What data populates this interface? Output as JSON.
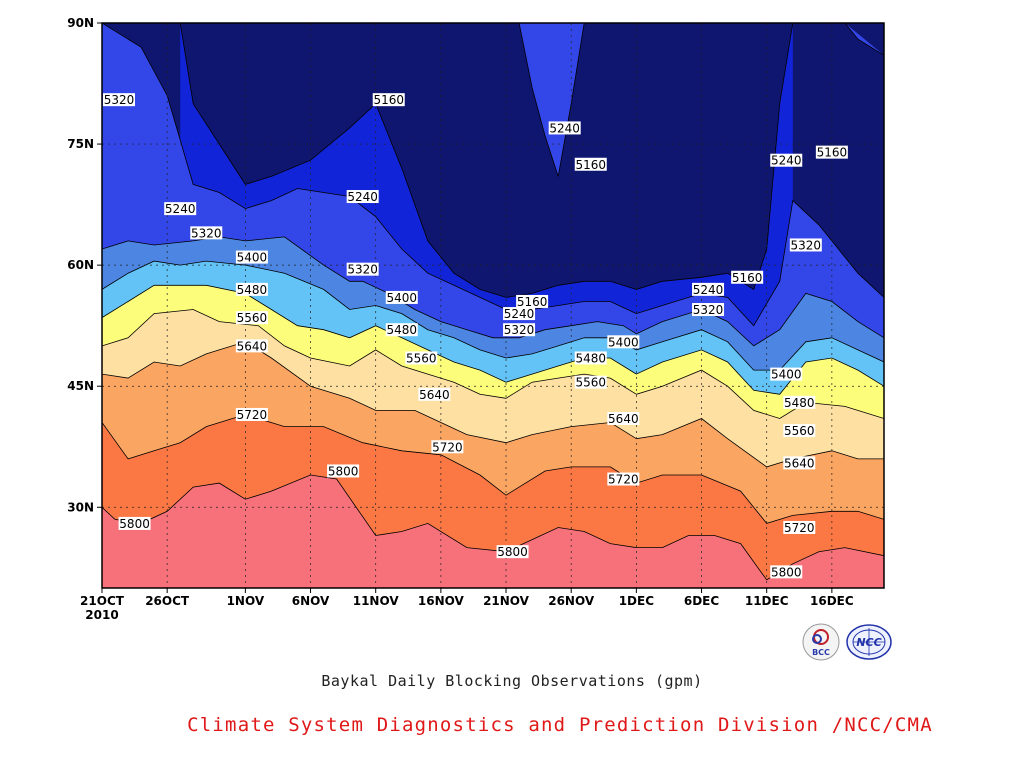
{
  "chart_data": {
    "type": "contour",
    "title": "Baykal Daily Blocking Observations (gpm)",
    "credit": "Climate System Diagnostics and Prediction Division /NCC/CMA",
    "logos": [
      "BCC",
      "NCC"
    ],
    "x_ticks": [
      "21OCT",
      "26OCT",
      "1NOV",
      "6NOV",
      "11NOV",
      "16NOV",
      "21NOV",
      "26NOV",
      "1DEC",
      "6DEC",
      "11DEC",
      "16DEC"
    ],
    "x_tick_days": [
      0,
      5,
      11,
      16,
      21,
      26,
      31,
      36,
      41,
      46,
      51,
      56
    ],
    "x_year_label": "2010",
    "x_range_days": [
      0,
      60
    ],
    "y_ticks": [
      "30N",
      "45N",
      "60N",
      "75N",
      "90N"
    ],
    "y_tick_values": [
      30,
      45,
      60,
      75,
      90
    ],
    "y_range": [
      20,
      90
    ],
    "grid": true,
    "levels": [
      5160,
      5240,
      5320,
      5400,
      5480,
      5560,
      5640,
      5720,
      5800
    ],
    "band_colors": [
      "#0f1670",
      "#1224d8",
      "#3346e8",
      "#4d86e2",
      "#63c3f7",
      "#fdfd7c",
      "#fde0a2",
      "#fba563",
      "#fb7845",
      "#f7717b"
    ],
    "contour_lines": [
      {
        "level": 5800,
        "points": [
          [
            0,
            30
          ],
          [
            1,
            28.5
          ],
          [
            3,
            28
          ],
          [
            5,
            29.5
          ],
          [
            7,
            32.5
          ],
          [
            9,
            33
          ],
          [
            11,
            31
          ],
          [
            13,
            32
          ],
          [
            16,
            34
          ],
          [
            18,
            33.5
          ],
          [
            21,
            26.5
          ],
          [
            23,
            27
          ],
          [
            25,
            28
          ],
          [
            28,
            25
          ],
          [
            31,
            24.5
          ],
          [
            33,
            26
          ],
          [
            35,
            27.5
          ],
          [
            37,
            27
          ],
          [
            39,
            25.5
          ],
          [
            41,
            25
          ],
          [
            43,
            25
          ],
          [
            45,
            26.5
          ],
          [
            47,
            26.5
          ],
          [
            49,
            25.5
          ],
          [
            51,
            21
          ],
          [
            53,
            23
          ],
          [
            55,
            24.5
          ],
          [
            57,
            25
          ],
          [
            60,
            24
          ]
        ]
      },
      {
        "level": 5720,
        "points": [
          [
            0,
            40.5
          ],
          [
            2,
            36
          ],
          [
            4,
            37
          ],
          [
            6,
            38
          ],
          [
            8,
            40
          ],
          [
            11,
            41.5
          ],
          [
            14,
            40
          ],
          [
            17,
            40
          ],
          [
            20,
            38
          ],
          [
            23,
            37
          ],
          [
            26,
            36.5
          ],
          [
            29,
            34
          ],
          [
            31,
            31.5
          ],
          [
            34,
            34.5
          ],
          [
            36,
            35
          ],
          [
            39,
            35
          ],
          [
            41,
            33
          ],
          [
            43,
            34
          ],
          [
            46,
            34
          ],
          [
            49,
            32
          ],
          [
            51,
            28
          ],
          [
            53,
            29
          ],
          [
            56,
            29.5
          ],
          [
            58,
            29.5
          ],
          [
            60,
            28.5
          ]
        ]
      },
      {
        "level": 5640,
        "points": [
          [
            0,
            46.5
          ],
          [
            2,
            46
          ],
          [
            4,
            48
          ],
          [
            6,
            47.5
          ],
          [
            8,
            49
          ],
          [
            11,
            50.5
          ],
          [
            13,
            48.5
          ],
          [
            16,
            45
          ],
          [
            19,
            43.5
          ],
          [
            21,
            42
          ],
          [
            24,
            42
          ],
          [
            26,
            40.5
          ],
          [
            28,
            39
          ],
          [
            31,
            38
          ],
          [
            33,
            39
          ],
          [
            36,
            40
          ],
          [
            39,
            40.5
          ],
          [
            41,
            38.5
          ],
          [
            43,
            39
          ],
          [
            46,
            41
          ],
          [
            48,
            38.5
          ],
          [
            51,
            35
          ],
          [
            53,
            36
          ],
          [
            56,
            37
          ],
          [
            58,
            36
          ],
          [
            60,
            36
          ]
        ]
      },
      {
        "level": 5560,
        "points": [
          [
            0,
            50
          ],
          [
            2,
            51
          ],
          [
            4,
            54
          ],
          [
            7,
            54.5
          ],
          [
            9,
            53
          ],
          [
            12,
            52.5
          ],
          [
            14,
            50
          ],
          [
            16,
            48.5
          ],
          [
            19,
            47.5
          ],
          [
            21,
            49.5
          ],
          [
            23,
            47.5
          ],
          [
            25,
            46.5
          ],
          [
            27,
            45.5
          ],
          [
            29,
            44
          ],
          [
            31,
            43.5
          ],
          [
            33,
            45.5
          ],
          [
            35,
            46
          ],
          [
            37,
            46.5
          ],
          [
            39,
            46
          ],
          [
            41,
            44
          ],
          [
            43,
            45
          ],
          [
            46,
            47
          ],
          [
            48,
            45
          ],
          [
            50,
            42
          ],
          [
            52,
            41
          ],
          [
            54,
            43
          ],
          [
            57,
            42.5
          ],
          [
            60,
            41
          ]
        ]
      },
      {
        "level": 5480,
        "points": [
          [
            0,
            53.5
          ],
          [
            2,
            55.5
          ],
          [
            4,
            57.5
          ],
          [
            6,
            57.5
          ],
          [
            8,
            57.5
          ],
          [
            11,
            56.5
          ],
          [
            13,
            54.5
          ],
          [
            15,
            52.5
          ],
          [
            17,
            52
          ],
          [
            19,
            51
          ],
          [
            21,
            52.5
          ],
          [
            23,
            51
          ],
          [
            25,
            49.5
          ],
          [
            27,
            48
          ],
          [
            29,
            47
          ],
          [
            31,
            45.5
          ],
          [
            33,
            46.5
          ],
          [
            35,
            47.5
          ],
          [
            37,
            48.5
          ],
          [
            39,
            48.5
          ],
          [
            41,
            46.5
          ],
          [
            43,
            48
          ],
          [
            46,
            49.5
          ],
          [
            48,
            48
          ],
          [
            50,
            44.5
          ],
          [
            52,
            44
          ],
          [
            54,
            48
          ],
          [
            56,
            48.5
          ],
          [
            58,
            47
          ],
          [
            60,
            45
          ]
        ]
      },
      {
        "level": 5400,
        "points": [
          [
            0,
            57
          ],
          [
            2,
            59
          ],
          [
            4,
            60.5
          ],
          [
            6,
            60
          ],
          [
            8,
            60.5
          ],
          [
            11,
            60
          ],
          [
            14,
            59
          ],
          [
            17,
            57
          ],
          [
            19,
            54.5
          ],
          [
            21,
            55
          ],
          [
            23,
            54
          ],
          [
            25,
            52
          ],
          [
            27,
            51
          ],
          [
            29,
            49.5
          ],
          [
            31,
            48.5
          ],
          [
            33,
            49
          ],
          [
            35,
            50
          ],
          [
            37,
            51
          ],
          [
            39,
            51
          ],
          [
            41,
            49.5
          ],
          [
            43,
            50.5
          ],
          [
            46,
            52
          ],
          [
            48,
            50.5
          ],
          [
            50,
            47
          ],
          [
            52,
            47
          ],
          [
            54,
            50.5
          ],
          [
            56,
            51
          ],
          [
            58,
            49.5
          ],
          [
            60,
            48
          ]
        ]
      },
      {
        "level": 5320,
        "points": [
          [
            0,
            62
          ],
          [
            2,
            63
          ],
          [
            4,
            62.5
          ],
          [
            7,
            63
          ],
          [
            9,
            63.5
          ],
          [
            11,
            63
          ],
          [
            14,
            63.5
          ],
          [
            17,
            60
          ],
          [
            19,
            58
          ],
          [
            20,
            58
          ],
          [
            22,
            56.5
          ],
          [
            24,
            54.5
          ],
          [
            26,
            53
          ],
          [
            28,
            52
          ],
          [
            30,
            51
          ],
          [
            32,
            51
          ],
          [
            34,
            52
          ],
          [
            36,
            52.5
          ],
          [
            38,
            53
          ],
          [
            40,
            52.5
          ],
          [
            41,
            51.5
          ],
          [
            43,
            53
          ],
          [
            46,
            54.5
          ],
          [
            48,
            53
          ],
          [
            50,
            50
          ],
          [
            52,
            52
          ],
          [
            54,
            56.5
          ],
          [
            56,
            55.5
          ],
          [
            58,
            53
          ],
          [
            60,
            51
          ]
        ]
      },
      {
        "level": 5240,
        "points": [
          [
            0,
            90
          ],
          [
            3,
            87
          ],
          [
            5,
            81
          ],
          [
            7,
            70
          ],
          [
            9,
            69
          ],
          [
            11,
            67
          ],
          [
            13,
            68
          ],
          [
            15,
            69.5
          ],
          [
            17,
            69
          ],
          [
            19,
            68.5
          ],
          [
            21,
            66
          ],
          [
            23,
            62
          ],
          [
            25,
            59
          ],
          [
            27,
            57.5
          ],
          [
            29,
            56
          ],
          [
            31,
            54.5
          ],
          [
            33,
            54.5
          ],
          [
            35,
            55
          ],
          [
            37,
            55.5
          ],
          [
            39,
            55.5
          ],
          [
            41,
            54
          ],
          [
            43,
            55
          ],
          [
            46,
            56.5
          ],
          [
            48,
            56
          ],
          [
            50,
            52.5
          ],
          [
            52,
            58
          ],
          [
            53,
            68
          ],
          [
            55,
            65
          ],
          [
            58,
            59
          ],
          [
            60,
            56
          ]
        ]
      },
      {
        "level": 5160,
        "points": [
          [
            6,
            90
          ],
          [
            7,
            80
          ],
          [
            9,
            75
          ],
          [
            11,
            70
          ],
          [
            13,
            71
          ],
          [
            16,
            73
          ],
          [
            19,
            77
          ],
          [
            21,
            80
          ],
          [
            23,
            72
          ],
          [
            25,
            63
          ],
          [
            27,
            59
          ],
          [
            29,
            57
          ],
          [
            31,
            56
          ],
          [
            33,
            56.5
          ],
          [
            35,
            57.5
          ],
          [
            37,
            58
          ],
          [
            39,
            58
          ],
          [
            41,
            57
          ],
          [
            43,
            58
          ],
          [
            46,
            58.5
          ],
          [
            48,
            59
          ],
          [
            50,
            57
          ],
          [
            51,
            62
          ],
          [
            52,
            80
          ],
          [
            53,
            90
          ]
        ]
      },
      {
        "level": 5240,
        "points": [
          [
            32,
            90
          ],
          [
            33,
            82
          ],
          [
            34,
            76
          ],
          [
            35,
            71
          ],
          [
            36,
            80
          ],
          [
            37,
            90
          ]
        ]
      },
      {
        "level": 5240,
        "points": [
          [
            57,
            90
          ],
          [
            58,
            88
          ],
          [
            60,
            86
          ]
        ]
      }
    ],
    "contour_labels": [
      {
        "text": "5320",
        "x": 0.3,
        "y": 80.5
      },
      {
        "text": "5160",
        "x": 22,
        "y": 80.5
      },
      {
        "text": "5240",
        "x": 35.5,
        "y": 77
      },
      {
        "text": "5160",
        "x": 37.5,
        "y": 72.5
      },
      {
        "text": "5240",
        "x": 52.5,
        "y": 73
      },
      {
        "text": "5160",
        "x": 56,
        "y": 74
      },
      {
        "text": "5240",
        "x": 6,
        "y": 67
      },
      {
        "text": "5320",
        "x": 8,
        "y": 64
      },
      {
        "text": "5240",
        "x": 20,
        "y": 68.5
      },
      {
        "text": "5400",
        "x": 11.5,
        "y": 61
      },
      {
        "text": "5320",
        "x": 20,
        "y": 59.5
      },
      {
        "text": "5480",
        "x": 11.5,
        "y": 57
      },
      {
        "text": "5400",
        "x": 23,
        "y": 56
      },
      {
        "text": "5560",
        "x": 11.5,
        "y": 53.5
      },
      {
        "text": "5480",
        "x": 23,
        "y": 52
      },
      {
        "text": "5640",
        "x": 11.5,
        "y": 50
      },
      {
        "text": "5560",
        "x": 24.5,
        "y": 48.5
      },
      {
        "text": "5640",
        "x": 25.5,
        "y": 44
      },
      {
        "text": "5720",
        "x": 11.5,
        "y": 41.5
      },
      {
        "text": "5720",
        "x": 26.5,
        "y": 37.5
      },
      {
        "text": "5800",
        "x": 18.5,
        "y": 34.5
      },
      {
        "text": "5800",
        "x": 2.5,
        "y": 28
      },
      {
        "text": "5160",
        "x": 33,
        "y": 55.5
      },
      {
        "text": "5240",
        "x": 32,
        "y": 54
      },
      {
        "text": "5320",
        "x": 32,
        "y": 52
      },
      {
        "text": "5400",
        "x": 40,
        "y": 50.5
      },
      {
        "text": "5480",
        "x": 37.5,
        "y": 48.5
      },
      {
        "text": "5560",
        "x": 37.5,
        "y": 45.5
      },
      {
        "text": "5640",
        "x": 40,
        "y": 41
      },
      {
        "text": "5720",
        "x": 40,
        "y": 33.5
      },
      {
        "text": "5800",
        "x": 31.5,
        "y": 24.5
      },
      {
        "text": "5160",
        "x": 49.5,
        "y": 58.5
      },
      {
        "text": "5240",
        "x": 46.5,
        "y": 57
      },
      {
        "text": "5320",
        "x": 46.5,
        "y": 54.5
      },
      {
        "text": "5320",
        "x": 54,
        "y": 62.5
      },
      {
        "text": "5400",
        "x": 52.5,
        "y": 46.5
      },
      {
        "text": "5480",
        "x": 53.5,
        "y": 43
      },
      {
        "text": "5560",
        "x": 53.5,
        "y": 39.5
      },
      {
        "text": "5640",
        "x": 53.5,
        "y": 35.5
      },
      {
        "text": "5720",
        "x": 53.5,
        "y": 27.5
      },
      {
        "text": "5800",
        "x": 52.5,
        "y": 22
      }
    ]
  }
}
